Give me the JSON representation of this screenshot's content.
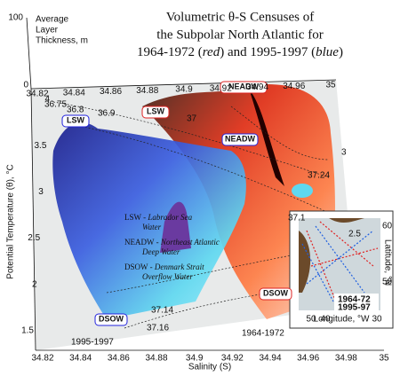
{
  "title": [
    "Volumetric θ-S Censuses of",
    "the Subpolar North Atlantic for"
  ],
  "title_line3": [
    "1964-1972 (",
    "red",
    ") and 1995-1997 (",
    "blue",
    ")"
  ],
  "thickness_axis": {
    "label": [
      "Average",
      "Layer",
      "Thickness, m"
    ],
    "ticks": [
      "100",
      "0"
    ]
  },
  "temperature_axis": {
    "label": "Potential Temperature (θ), °C",
    "ticks": [
      "1.5",
      "2",
      "2.5",
      "3",
      "3.5",
      "4"
    ]
  },
  "salinity_axis": {
    "label": "Salinity (S)",
    "ticks": [
      "34.82",
      "34.84",
      "34.86",
      "34.88",
      "34.9",
      "34.92",
      "34.94",
      "34.96",
      "34.98",
      "35"
    ]
  },
  "back_axis_ticks": [
    "34.82",
    "34.84",
    "34.86",
    "34.88",
    "34.9",
    "34.92",
    "34.94",
    "34.96",
    "35"
  ],
  "right_axis_ticks": [
    "3",
    "2.5"
  ],
  "contour_labels": [
    "36.75",
    "36.8",
    "36.9",
    "37",
    "37.24",
    "37.1",
    "37.14",
    "37.16"
  ],
  "water_masses": [
    "LSW",
    "LSW",
    "NEADW",
    "NEADW",
    "DSOW",
    "DSOW"
  ],
  "legend": [
    {
      "abbr": "LSW",
      "desc": "Labrador Sea Water"
    },
    {
      "abbr": "NEADW",
      "desc": "Northeast Atlantic Deep Water"
    },
    {
      "abbr": "DSOW",
      "desc": "Denmark Strait Overflow Water"
    }
  ],
  "period_labels": [
    "1995-1997",
    "1964-1972"
  ],
  "inset": {
    "legend": [
      "1964-72",
      "1995-97"
    ],
    "x_label": "Longitude, °W",
    "y_label": "Latitude, °N",
    "x_ticks": [
      "50",
      "40",
      "30"
    ],
    "y_ticks": [
      "60",
      "50"
    ]
  }
}
